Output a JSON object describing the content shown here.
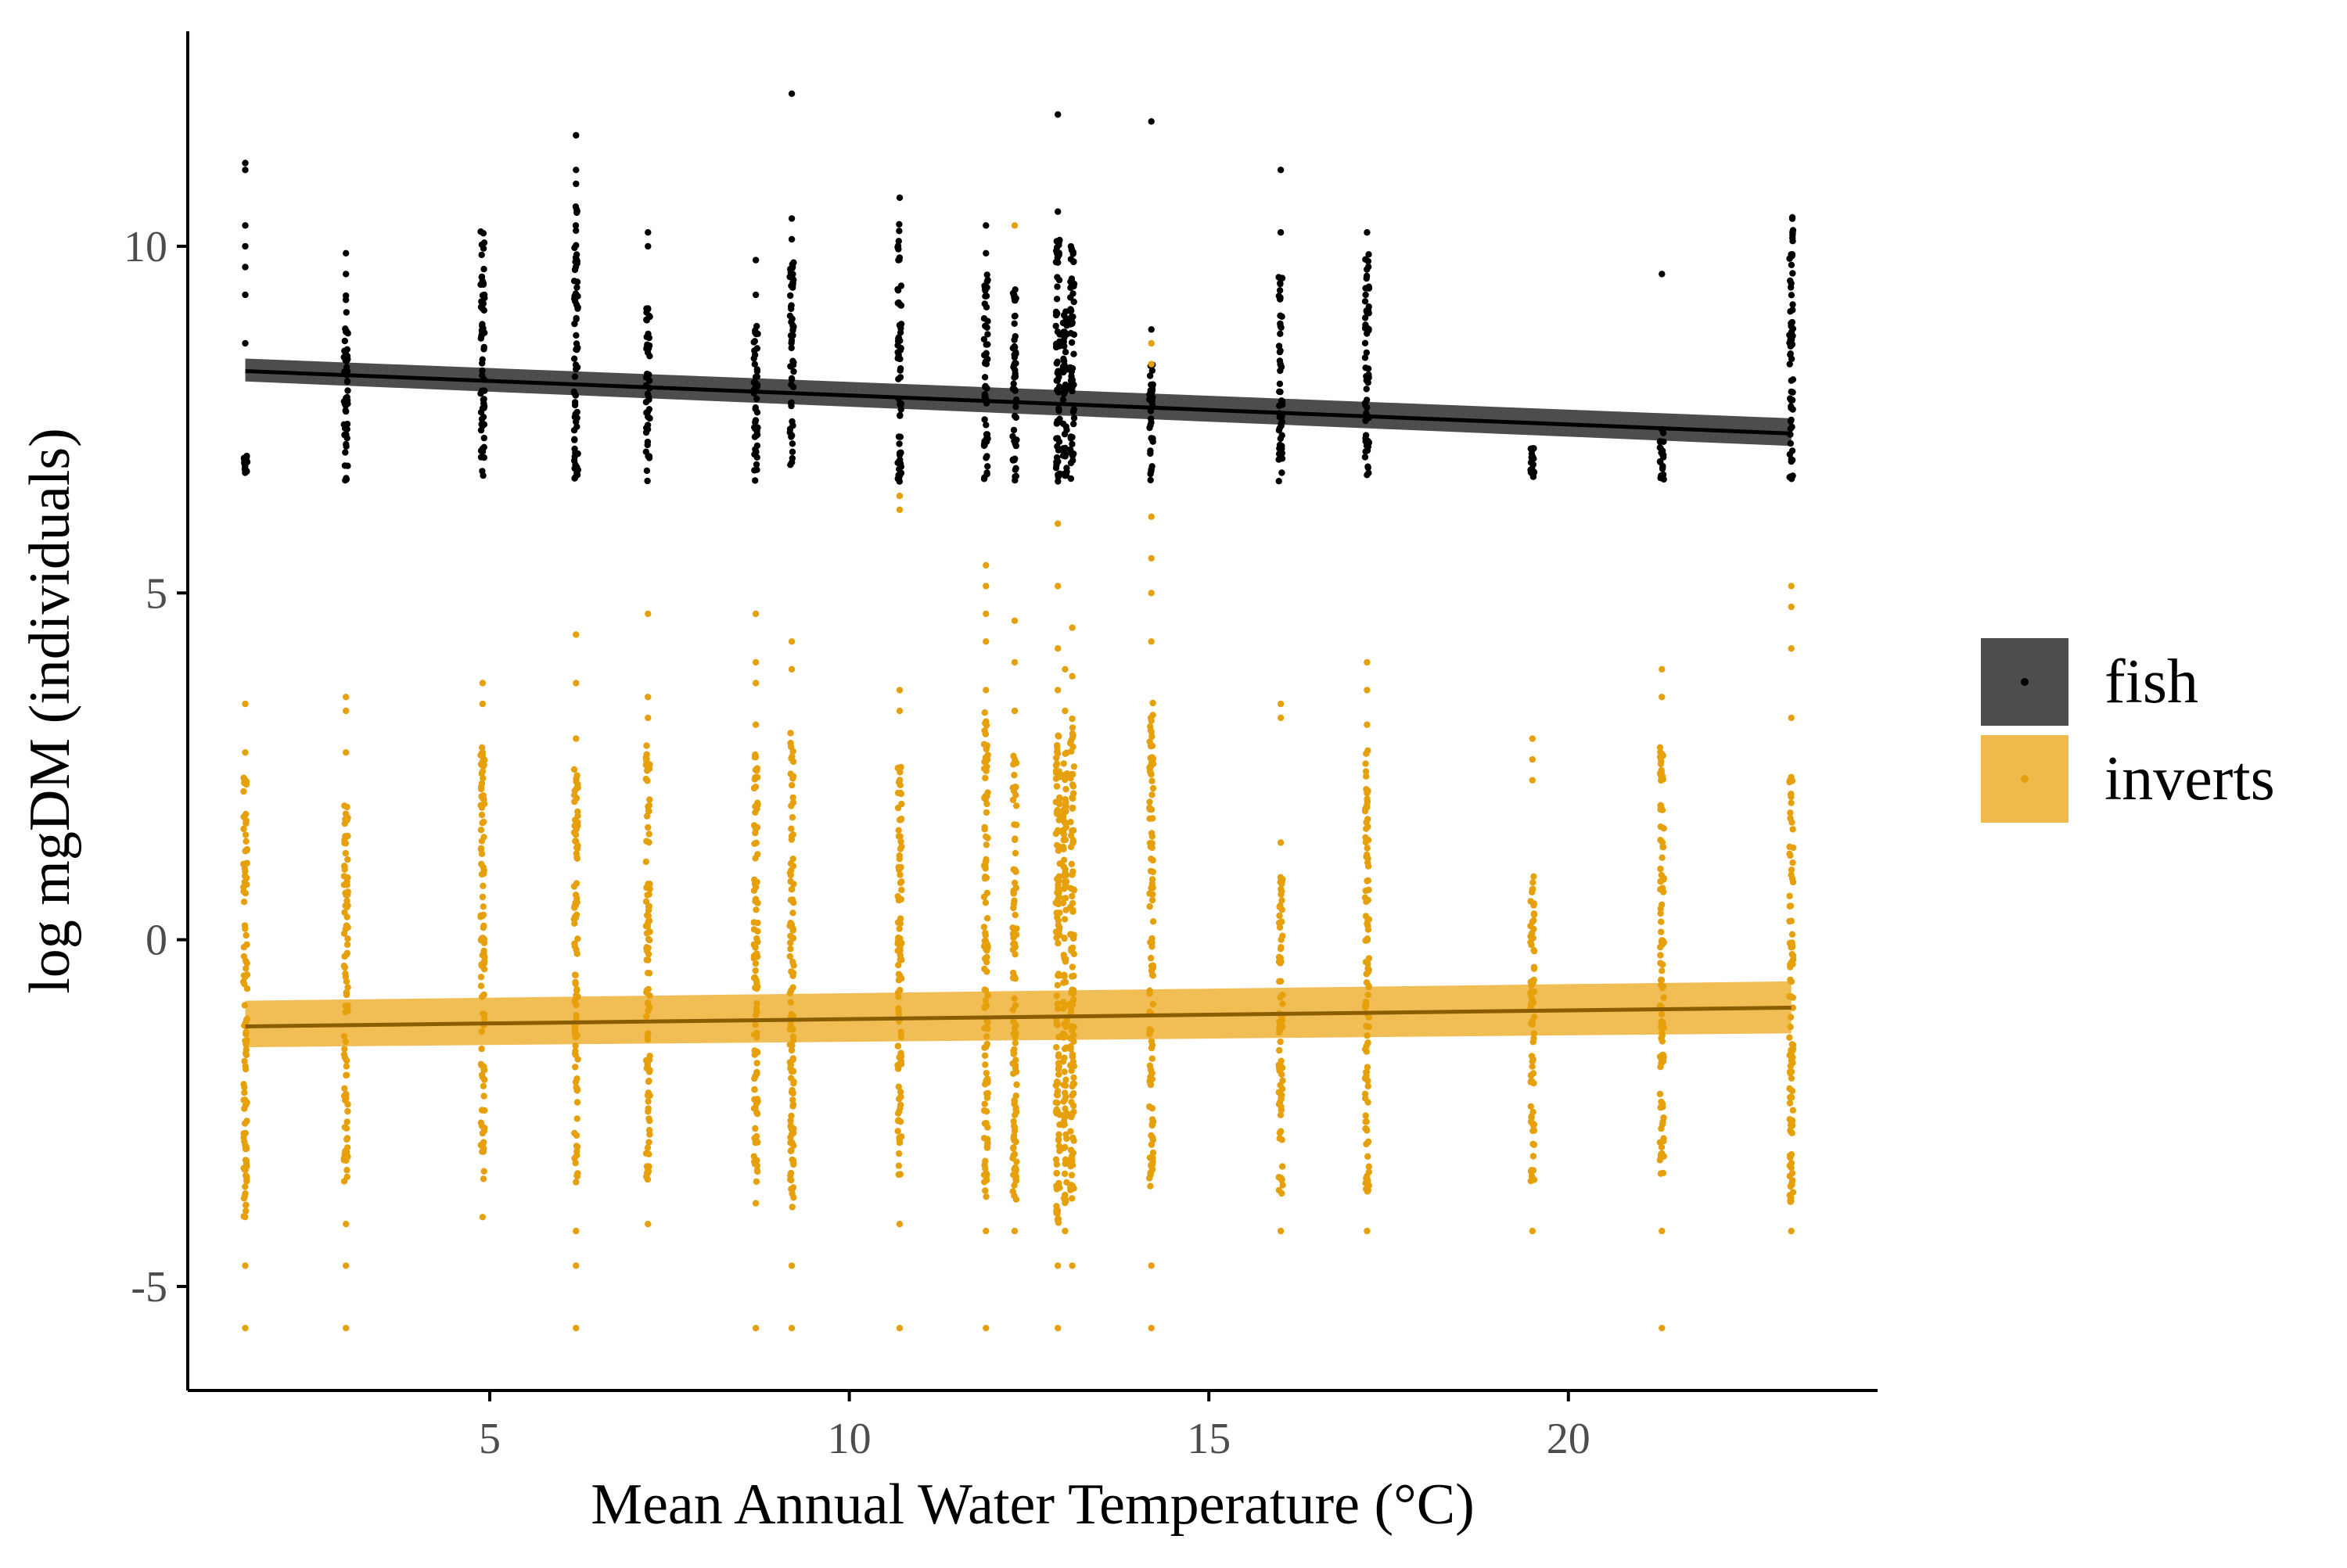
{
  "chart_data": {
    "type": "scatter",
    "title": "",
    "xlabel": "Mean Annual Water Temperature (°C)",
    "ylabel": "log mgDM (individuals)",
    "xlim": [
      0.8,
      24.3
    ],
    "ylim": [
      -6.5,
      13.1
    ],
    "xticks": [
      5,
      10,
      15,
      20
    ],
    "yticks": [
      -5,
      0,
      5,
      10
    ],
    "xtick_labels": [
      "5",
      "10",
      "15",
      "20"
    ],
    "ytick_labels": [
      "-5",
      "0",
      "5",
      "10"
    ],
    "legend_position": "right",
    "temperatures": [
      1.6,
      3.0,
      4.9,
      6.2,
      7.2,
      8.7,
      9.2,
      10.7,
      11.9,
      12.3,
      12.9,
      13.0,
      13.1,
      14.2,
      16.0,
      17.2,
      19.5,
      21.3,
      23.1
    ],
    "series": [
      {
        "name": "fish",
        "color": "#000000",
        "band_color": "#4d4d4d",
        "fit": {
          "x": [
            1.6,
            23.1
          ],
          "y": [
            8.2,
            7.3
          ],
          "lower": [
            8.05,
            7.12
          ],
          "upper": [
            8.38,
            7.52
          ]
        },
        "columns": [
          {
            "x": 1.6,
            "range": [
              6.7,
              7.0
            ],
            "outliers": [
              6.85,
              8.6,
              9.3,
              9.7,
              10.0,
              10.3,
              11.1,
              11.2
            ]
          },
          {
            "x": 3.0,
            "range": [
              6.6,
              9.3
            ],
            "outliers": [
              9.6,
              9.9
            ]
          },
          {
            "x": 4.9,
            "range": [
              6.6,
              10.3
            ],
            "outliers": []
          },
          {
            "x": 6.2,
            "range": [
              6.6,
              10.6
            ],
            "outliers": [
              10.9,
              11.1,
              11.6
            ]
          },
          {
            "x": 7.2,
            "range": [
              6.6,
              9.2
            ],
            "outliers": [
              10.0,
              10.2
            ]
          },
          {
            "x": 8.7,
            "range": [
              6.6,
              9.0
            ],
            "outliers": [
              9.3,
              9.8
            ]
          },
          {
            "x": 9.2,
            "range": [
              6.6,
              9.8
            ],
            "outliers": [
              10.1,
              10.4,
              12.2
            ]
          },
          {
            "x": 10.7,
            "range": [
              6.6,
              10.4
            ],
            "outliers": [
              10.7
            ]
          },
          {
            "x": 11.9,
            "range": [
              6.6,
              9.6
            ],
            "outliers": [
              9.9,
              10.3
            ]
          },
          {
            "x": 12.3,
            "range": [
              6.6,
              9.5
            ],
            "outliers": []
          },
          {
            "x": 12.9,
            "range": [
              6.6,
              10.2
            ],
            "outliers": [
              10.5,
              11.9
            ]
          },
          {
            "x": 13.0,
            "range": [
              6.6,
              9.2
            ],
            "outliers": []
          },
          {
            "x": 13.1,
            "range": [
              6.6,
              10.0
            ],
            "outliers": []
          },
          {
            "x": 14.2,
            "range": [
              6.6,
              8.3
            ],
            "outliers": [
              8.8,
              11.8
            ]
          },
          {
            "x": 16.0,
            "range": [
              6.6,
              9.6
            ],
            "outliers": [
              10.2,
              11.1
            ]
          },
          {
            "x": 17.2,
            "range": [
              6.6,
              10.0
            ],
            "outliers": [
              10.2
            ]
          },
          {
            "x": 19.5,
            "range": [
              6.6,
              7.1
            ],
            "outliers": []
          },
          {
            "x": 21.3,
            "range": [
              6.6,
              7.4
            ],
            "outliers": [
              9.6
            ]
          },
          {
            "x": 23.1,
            "range": [
              6.6,
              10.5
            ],
            "outliers": []
          }
        ]
      },
      {
        "name": "inverts",
        "color": "#e6a00c",
        "band_color": "#efbb4c",
        "line_color": "#8a5e00",
        "fit": {
          "x": [
            1.6,
            23.1
          ],
          "y": [
            -1.25,
            -0.98
          ],
          "lower": [
            -1.55,
            -1.35
          ],
          "upper": [
            -0.88,
            -0.6
          ]
        },
        "columns": [
          {
            "x": 1.6,
            "range": [
              -4.0,
              2.4
            ],
            "outliers": [
              -4.7,
              -5.6,
              3.4,
              2.7
            ]
          },
          {
            "x": 3.0,
            "range": [
              -3.5,
              2.0
            ],
            "outliers": [
              -4.1,
              -4.7,
              -5.6,
              2.7,
              3.3,
              3.5
            ]
          },
          {
            "x": 4.9,
            "range": [
              -3.5,
              2.8
            ],
            "outliers": [
              -4.0,
              3.4,
              3.7
            ]
          },
          {
            "x": 6.2,
            "range": [
              -3.6,
              2.5
            ],
            "outliers": [
              -4.2,
              -4.7,
              -5.6,
              2.9,
              3.7,
              4.4
            ]
          },
          {
            "x": 7.2,
            "range": [
              -3.5,
              2.8
            ],
            "outliers": [
              -4.1,
              3.2,
              3.5,
              4.7
            ]
          },
          {
            "x": 8.7,
            "range": [
              -3.5,
              2.8
            ],
            "outliers": [
              -3.8,
              -5.6,
              3.1,
              3.7,
              4.0,
              4.7
            ]
          },
          {
            "x": 9.2,
            "range": [
              -4.1,
              3.0
            ],
            "outliers": [
              -4.7,
              -5.6,
              3.9,
              4.3
            ]
          },
          {
            "x": 10.7,
            "range": [
              -3.4,
              2.5
            ],
            "outliers": [
              -4.1,
              -5.6,
              3.3,
              3.6
            ]
          },
          {
            "x": 11.9,
            "range": [
              -3.8,
              3.3
            ],
            "outliers": [
              -4.2,
              -5.6,
              3.6,
              4.3,
              4.7,
              5.1,
              5.4
            ]
          },
          {
            "x": 12.3,
            "range": [
              -3.8,
              2.7
            ],
            "outliers": [
              -4.2,
              3.3,
              4.0,
              4.6
            ]
          },
          {
            "x": 12.9,
            "range": [
              -4.1,
              3.0
            ],
            "outliers": [
              -4.7,
              -5.6,
              3.6,
              4.2,
              5.1,
              6.0
            ]
          },
          {
            "x": 13.0,
            "range": [
              -3.8,
              2.7
            ],
            "outliers": [
              -4.2,
              3.3,
              3.9
            ]
          },
          {
            "x": 13.1,
            "range": [
              -3.8,
              3.2
            ],
            "outliers": [
              -4.7,
              3.8,
              4.5
            ]
          },
          {
            "x": 14.2,
            "range": [
              -3.6,
              3.5
            ],
            "outliers": [
              -4.7,
              -5.6,
              4.3,
              5.0,
              5.5,
              6.1,
              8.3,
              8.6
            ]
          },
          {
            "x": 16.0,
            "range": [
              -3.7,
              1.0
            ],
            "outliers": [
              -4.2,
              1.4,
              3.2,
              3.4
            ]
          },
          {
            "x": 17.2,
            "range": [
              -3.7,
              2.8
            ],
            "outliers": [
              -4.2,
              3.1,
              3.6,
              4.0
            ]
          },
          {
            "x": 19.5,
            "range": [
              -3.5,
              1.0
            ],
            "outliers": [
              -4.2,
              2.3,
              2.6,
              2.9
            ]
          },
          {
            "x": 21.3,
            "range": [
              -3.4,
              2.8
            ],
            "outliers": [
              -4.2,
              -5.6,
              3.5,
              3.9
            ]
          },
          {
            "x": 23.1,
            "range": [
              -3.8,
              2.4
            ],
            "outliers": [
              -4.2,
              3.2,
              4.2,
              4.8,
              5.1
            ]
          }
        ],
        "extra_points": [
          {
            "x": 12.3,
            "y": 10.3
          },
          {
            "x": 10.7,
            "y": 6.2
          },
          {
            "x": 10.7,
            "y": 6.4
          }
        ]
      }
    ]
  }
}
